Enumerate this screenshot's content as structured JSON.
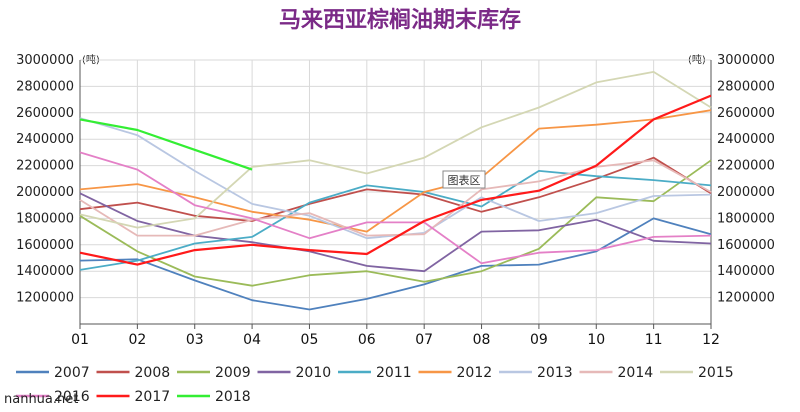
{
  "chart_data": {
    "type": "line",
    "title": "马来西亚棕榈油期末库存",
    "unit_left": "(吨)",
    "unit_right": "(吨)",
    "categories": [
      "01",
      "02",
      "03",
      "04",
      "05",
      "06",
      "07",
      "08",
      "09",
      "10",
      "11",
      "12"
    ],
    "ylim": [
      1000000,
      3000000
    ],
    "yticks": [
      1200000,
      1400000,
      1600000,
      1800000,
      2000000,
      2200000,
      2400000,
      2600000,
      2800000,
      3000000
    ],
    "ytick_labels": [
      "1200000",
      "1400000",
      "1600000",
      "1800000",
      "2000000",
      "2200000",
      "2400000",
      "2600000",
      "2800000",
      "3000000"
    ],
    "grid": true,
    "legend_position": "bottom",
    "chart_area_label": "图表区",
    "series": [
      {
        "name": "2007",
        "color": "#4f81bd",
        "values": [
          1480000,
          1490000,
          1330000,
          1180000,
          1110000,
          1190000,
          1300000,
          1440000,
          1450000,
          1550000,
          1800000,
          1680000
        ]
      },
      {
        "name": "2008",
        "color": "#c0504d",
        "values": [
          1870000,
          1920000,
          1820000,
          1780000,
          1910000,
          2020000,
          1980000,
          1850000,
          1960000,
          2100000,
          2260000,
          1990000
        ]
      },
      {
        "name": "2009",
        "color": "#9bbb59",
        "values": [
          1820000,
          1550000,
          1360000,
          1290000,
          1370000,
          1400000,
          1320000,
          1400000,
          1570000,
          1960000,
          1930000,
          2240000
        ]
      },
      {
        "name": "2010",
        "color": "#8064a2",
        "values": [
          1990000,
          1780000,
          1670000,
          1620000,
          1550000,
          1440000,
          1400000,
          1700000,
          1710000,
          1790000,
          1630000,
          1610000
        ]
      },
      {
        "name": "2011",
        "color": "#4bacc6",
        "values": [
          1410000,
          1480000,
          1610000,
          1660000,
          1920000,
          2050000,
          2000000,
          1890000,
          2160000,
          2120000,
          2090000,
          2050000
        ]
      },
      {
        "name": "2012",
        "color": "#f79646",
        "values": [
          2020000,
          2060000,
          1960000,
          1850000,
          1790000,
          1700000,
          2000000,
          2110000,
          2480000,
          2510000,
          2550000,
          2620000
        ]
      },
      {
        "name": "2013",
        "color": "#b9c7e2",
        "values": [
          2560000,
          2430000,
          2160000,
          1910000,
          1820000,
          1650000,
          1690000,
          1960000,
          1780000,
          1840000,
          1970000,
          1980000
        ]
      },
      {
        "name": "2014",
        "color": "#e6b9b8",
        "values": [
          1940000,
          1670000,
          1670000,
          1790000,
          1840000,
          1670000,
          1680000,
          2020000,
          2080000,
          2190000,
          2240000,
          2000000
        ]
      },
      {
        "name": "2015",
        "color": "#d4d7b4",
        "values": [
          1830000,
          1730000,
          1800000,
          2190000,
          2240000,
          2140000,
          2260000,
          2490000,
          2640000,
          2830000,
          2910000,
          2640000
        ]
      },
      {
        "name": "2016",
        "color": "#e480c7",
        "values": [
          2300000,
          2170000,
          1900000,
          1800000,
          1650000,
          1770000,
          1770000,
          1460000,
          1540000,
          1560000,
          1660000,
          1670000
        ]
      },
      {
        "name": "2017",
        "color": "#ff1a1a",
        "values": [
          1540000,
          1450000,
          1560000,
          1600000,
          1560000,
          1530000,
          1780000,
          1940000,
          2010000,
          2200000,
          2550000,
          2730000
        ]
      },
      {
        "name": "2018",
        "color": "#33ee33",
        "values": [
          2550000,
          2470000,
          2320000,
          2170000,
          null,
          null,
          null,
          null,
          null,
          null,
          null,
          null
        ]
      }
    ]
  },
  "watermark": "nanhua.net"
}
